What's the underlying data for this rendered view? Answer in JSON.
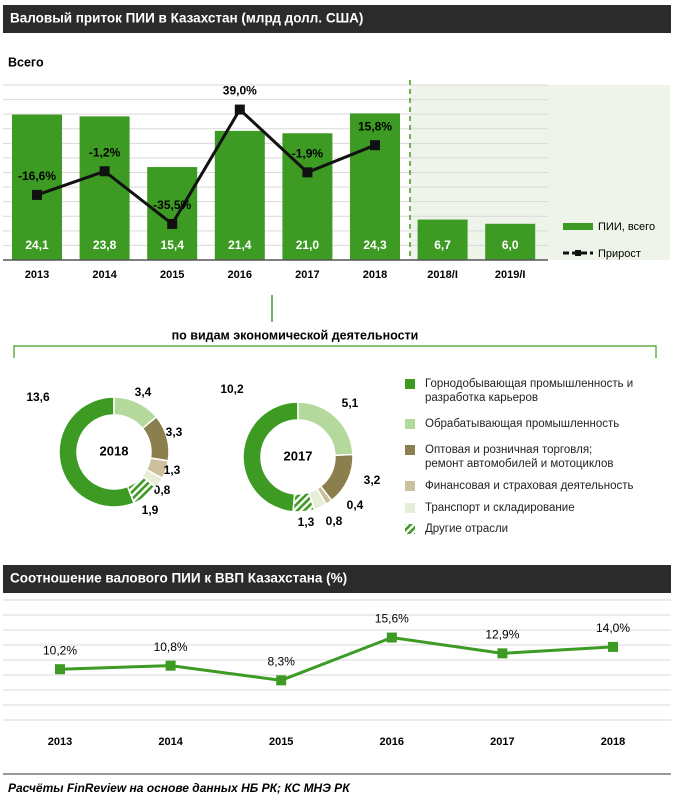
{
  "chart_data": [
    {
      "type": "bar",
      "title": "Валовый приток ПИИ в Казахстан (млрд долл. США)",
      "subtitle": "Всего",
      "categories": [
        "2013",
        "2014",
        "2015",
        "2016",
        "2017",
        "2018",
        "2018/I",
        "2019/I"
      ],
      "series": [
        {
          "name": "ПИИ, всего",
          "type": "bar",
          "color": "#3d9b23",
          "values": [
            24.1,
            23.8,
            15.4,
            21.4,
            21.0,
            24.3,
            6.7,
            6.0
          ],
          "value_labels": [
            "24,1",
            "23,8",
            "15,4",
            "21,4",
            "21,0",
            "24,3",
            "6,7",
            "6,0"
          ]
        },
        {
          "name": "Прирост",
          "type": "line",
          "axis": "y2",
          "color": "#111111",
          "values": [
            -16.6,
            -1.2,
            -35.5,
            39.0,
            -1.9,
            15.8,
            null,
            null
          ],
          "value_labels": [
            "-16,6%",
            "-1,2%",
            "-35,5%",
            "39,0%",
            "-1,9%",
            "15,8%",
            null,
            null
          ]
        }
      ],
      "ylim": [
        0,
        29
      ],
      "y2lim": [
        -59,
        55
      ]
    },
    {
      "type": "donut",
      "subtitle": "по видам экономической деятельности",
      "categories": [
        "Горнодобывающая промышленность и\nразработка карьеров",
        "Обрабатывающая промышленность",
        "Оптовая и розничная торговля;\nремонт автомобилей и мотоциклов",
        "Финансовая и страховая деятельность",
        "Транспорт и складирование",
        "Другие отрасли"
      ],
      "colors": [
        "#3d9b23",
        "#b5d99c",
        "#8c7f4e",
        "#cbbf9c",
        "#e6efd6",
        "#3d9b23"
      ],
      "fill_pattern": [
        "solid",
        "solid",
        "solid",
        "solid",
        "solid",
        "hatch"
      ],
      "series": [
        {
          "name": "2018",
          "values": [
            13.6,
            3.4,
            3.3,
            1.3,
            0.8,
            1.9
          ],
          "value_labels": [
            "13,6",
            "3,4",
            "3,3",
            "1,3",
            "0,8",
            "1,9"
          ]
        },
        {
          "name": "2017",
          "values": [
            10.2,
            5.1,
            3.2,
            0.4,
            0.8,
            1.3
          ],
          "value_labels": [
            "10,2",
            "5,1",
            "3,2",
            "0,4",
            "0,8",
            "1,3"
          ]
        }
      ]
    },
    {
      "type": "line",
      "title": "Соотношение валового ПИИ к ВВП Казахстана (%)",
      "categories": [
        "2013",
        "2014",
        "2015",
        "2016",
        "2017",
        "2018"
      ],
      "color": "#3d9b23",
      "values": [
        10.2,
        10.8,
        8.3,
        15.6,
        12.9,
        14.0
      ],
      "value_labels": [
        "10,2%",
        "10,8%",
        "8,3%",
        "15,6%",
        "12,9%",
        "14,0%"
      ],
      "ylim": [
        0,
        22
      ]
    }
  ],
  "source": "Расчёты FinReview на основе данных НБ РК; КС МНЭ РК"
}
